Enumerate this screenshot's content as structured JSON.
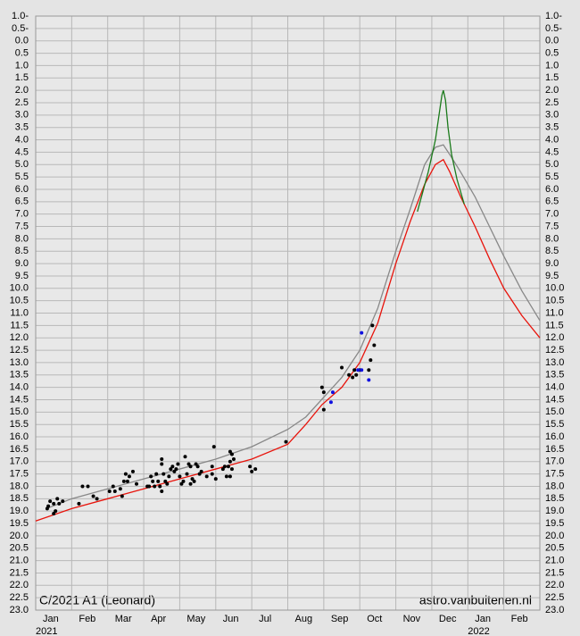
{
  "chart_data": {
    "type": "scatter",
    "annotations": [
      "C/2021 A1 (Leonard)",
      "astro.vanbuitenen.nl"
    ],
    "xlim": [
      0,
      14
    ],
    "xticks": [
      {
        "value": 0,
        "label": "Jan"
      },
      {
        "value": 1,
        "label": "Feb"
      },
      {
        "value": 2,
        "label": "Mar"
      },
      {
        "value": 3,
        "label": "Apr"
      },
      {
        "value": 4,
        "label": "May"
      },
      {
        "value": 5,
        "label": "Jun"
      },
      {
        "value": 6,
        "label": "Jul"
      },
      {
        "value": 7,
        "label": "Aug"
      },
      {
        "value": 8,
        "label": "Sep"
      },
      {
        "value": 9,
        "label": "Oct"
      },
      {
        "value": 10,
        "label": "Nov"
      },
      {
        "value": 11,
        "label": "Dec"
      },
      {
        "value": 12,
        "label": "Jan"
      },
      {
        "value": 13,
        "label": "Feb"
      }
    ],
    "year_labels": [
      {
        "value": 0,
        "label": "2021"
      },
      {
        "value": 12,
        "label": "2022"
      }
    ],
    "ylim": [
      -1,
      23
    ],
    "y_inverted": true,
    "grid": true,
    "yticks": [
      {
        "value": -1,
        "label": "1.0-"
      },
      {
        "value": -0.5,
        "label": "0.5-"
      },
      {
        "value": 0,
        "label": "0.0"
      },
      {
        "value": 0.5,
        "label": "0.5"
      },
      {
        "value": 1,
        "label": "1.0"
      },
      {
        "value": 1.5,
        "label": "1.5"
      },
      {
        "value": 2,
        "label": "2.0"
      },
      {
        "value": 2.5,
        "label": "2.5"
      },
      {
        "value": 3,
        "label": "3.0"
      },
      {
        "value": 3.5,
        "label": "3.5"
      },
      {
        "value": 4,
        "label": "4.0"
      },
      {
        "value": 4.5,
        "label": "4.5"
      },
      {
        "value": 5,
        "label": "5.0"
      },
      {
        "value": 5.5,
        "label": "5.5"
      },
      {
        "value": 6,
        "label": "6.0"
      },
      {
        "value": 6.5,
        "label": "6.5"
      },
      {
        "value": 7,
        "label": "7.0"
      },
      {
        "value": 7.5,
        "label": "7.5"
      },
      {
        "value": 8,
        "label": "8.0"
      },
      {
        "value": 8.5,
        "label": "8.5"
      },
      {
        "value": 9,
        "label": "9.0"
      },
      {
        "value": 9.5,
        "label": "9.5"
      },
      {
        "value": 10,
        "label": "10.0"
      },
      {
        "value": 10.5,
        "label": "10.5"
      },
      {
        "value": 11,
        "label": "11.0"
      },
      {
        "value": 11.5,
        "label": "11.5"
      },
      {
        "value": 12,
        "label": "12.0"
      },
      {
        "value": 12.5,
        "label": "12.5"
      },
      {
        "value": 13,
        "label": "13.0"
      },
      {
        "value": 13.5,
        "label": "13.5"
      },
      {
        "value": 14,
        "label": "14.0"
      },
      {
        "value": 14.5,
        "label": "14.5"
      },
      {
        "value": 15,
        "label": "15.0"
      },
      {
        "value": 15.5,
        "label": "15.5"
      },
      {
        "value": 16,
        "label": "16.0"
      },
      {
        "value": 16.5,
        "label": "16.5"
      },
      {
        "value": 17,
        "label": "17.0"
      },
      {
        "value": 17.5,
        "label": "17.5"
      },
      {
        "value": 18,
        "label": "18.0"
      },
      {
        "value": 18.5,
        "label": "18.5"
      },
      {
        "value": 19,
        "label": "19.0"
      },
      {
        "value": 19.5,
        "label": "19.5"
      },
      {
        "value": 20,
        "label": "20.0"
      },
      {
        "value": 20.5,
        "label": "20.5"
      },
      {
        "value": 21,
        "label": "21.0"
      },
      {
        "value": 21.5,
        "label": "21.5"
      },
      {
        "value": 22,
        "label": "22.0"
      },
      {
        "value": 22.5,
        "label": "22.5"
      },
      {
        "value": 23,
        "label": "23.0"
      }
    ],
    "series": [
      {
        "type": "line",
        "color": "#888888",
        "x": [
          0.3,
          1,
          2,
          3,
          4,
          5,
          6,
          7,
          7.5,
          8,
          8.5,
          9,
          9.5,
          10,
          10.4,
          10.8,
          11.1,
          11.32,
          11.5,
          11.8,
          12.2,
          12.6,
          13,
          13.5,
          14
        ],
        "values": [
          18.9,
          18.5,
          18.1,
          17.7,
          17.3,
          16.9,
          16.4,
          15.7,
          15.2,
          14.4,
          13.6,
          12.5,
          10.8,
          8.5,
          6.8,
          5.0,
          4.3,
          4.2,
          4.6,
          5.3,
          6.3,
          7.5,
          8.7,
          10.1,
          11.3
        ]
      },
      {
        "type": "line",
        "color": "#e8140c",
        "x": [
          0,
          1,
          2,
          3,
          4,
          5,
          6,
          7,
          7.5,
          7.95,
          8.5,
          9,
          9.5,
          10,
          10.4,
          10.8,
          11.1,
          11.32,
          11.5,
          11.8,
          12.2,
          12.6,
          13,
          13.5,
          14
        ],
        "values": [
          19.4,
          18.9,
          18.5,
          18.1,
          17.7,
          17.3,
          16.9,
          16.3,
          15.5,
          14.7,
          14.0,
          13.0,
          11.4,
          9.0,
          7.3,
          5.8,
          5.0,
          4.8,
          5.3,
          6.3,
          7.5,
          8.8,
          10.0,
          11.1,
          12.0
        ]
      },
      {
        "type": "line",
        "color": "#1a7a1a",
        "x": [
          10.6,
          10.9,
          11.1,
          11.2,
          11.28,
          11.32,
          11.38,
          11.45,
          11.55,
          11.7,
          11.9
        ],
        "values": [
          6.9,
          5.3,
          4.0,
          3.0,
          2.2,
          2.0,
          2.4,
          3.5,
          4.6,
          5.6,
          6.6
        ]
      },
      {
        "type": "scatter",
        "color": "#000000",
        "x": [
          0.32,
          0.35,
          0.4,
          0.5,
          0.55,
          0.6,
          0.65,
          0.75,
          0.5,
          1.2,
          1.3,
          1.45,
          1.6,
          1.7,
          2.05,
          2.15,
          2.2,
          2.35,
          2.4,
          2.45,
          2.5,
          2.55,
          2.6,
          2.7,
          2.8,
          3.1,
          3.15,
          3.2,
          3.25,
          3.3,
          3.35,
          3.4,
          3.45,
          3.5,
          3.5,
          3.5,
          3.55,
          3.6,
          3.65,
          3.7,
          3.75,
          3.8,
          3.85,
          3.9,
          3.95,
          4.0,
          4.05,
          4.1,
          4.15,
          4.2,
          4.25,
          4.3,
          4.3,
          4.35,
          4.4,
          4.45,
          4.5,
          4.55,
          4.6,
          4.75,
          4.9,
          4.9,
          4.95,
          5.0,
          5.2,
          5.25,
          5.3,
          5.35,
          5.4,
          5.4,
          5.45,
          5.45,
          5.5,
          5.4,
          5.95,
          6.0,
          6.1,
          6.95,
          7.95,
          8.0,
          8.0,
          8.5,
          8.7,
          8.8,
          8.85,
          8.9,
          9.0,
          9.25,
          9.3,
          9.35,
          9.4
        ],
        "values": [
          18.9,
          18.8,
          18.6,
          19.1,
          19.0,
          18.5,
          18.7,
          18.6,
          18.7,
          18.7,
          18.0,
          18.0,
          18.4,
          18.5,
          18.2,
          18.0,
          18.2,
          18.1,
          18.4,
          17.8,
          17.5,
          17.8,
          17.6,
          17.4,
          17.9,
          18.0,
          18.0,
          17.6,
          17.8,
          18.0,
          17.5,
          17.8,
          18.0,
          16.9,
          17.1,
          18.2,
          17.5,
          17.8,
          17.9,
          17.6,
          17.3,
          17.2,
          17.4,
          17.3,
          17.1,
          17.6,
          17.9,
          17.8,
          16.8,
          17.5,
          17.1,
          17.2,
          17.9,
          17.7,
          17.8,
          17.1,
          17.2,
          17.5,
          17.4,
          17.6,
          17.2,
          17.5,
          16.4,
          17.7,
          17.3,
          17.2,
          17.6,
          17.2,
          16.6,
          17.0,
          16.7,
          17.3,
          16.9,
          17.6,
          17.2,
          17.4,
          17.3,
          16.2,
          14.0,
          14.2,
          14.9,
          13.2,
          13.5,
          13.6,
          13.3,
          13.5,
          13.3,
          13.3,
          12.9,
          11.5,
          12.3
        ]
      },
      {
        "type": "scatter",
        "color": "#1010e0",
        "x": [
          8.25,
          8.2,
          8.95,
          9.05,
          9.05,
          9.25
        ],
        "values": [
          14.2,
          14.6,
          13.3,
          11.8,
          13.3,
          13.7
        ]
      }
    ]
  }
}
